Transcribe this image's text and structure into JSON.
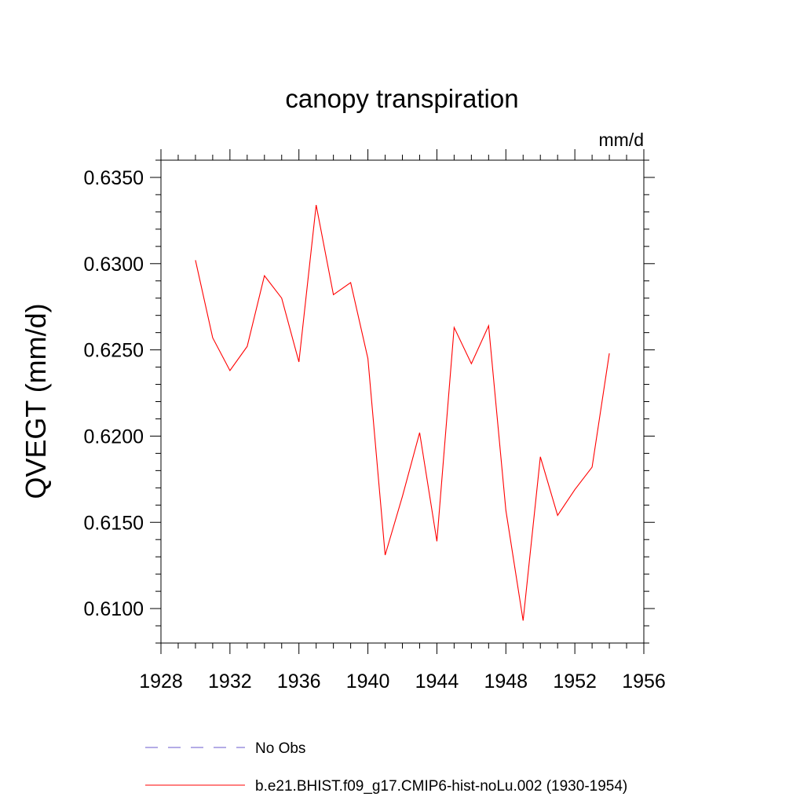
{
  "chart_data": {
    "type": "line",
    "title": "canopy transpiration",
    "units": "mm/d",
    "ylabel": "QVEGT  (mm/d)",
    "xlabel": "",
    "xlim": [
      1928,
      1956
    ],
    "ylim": [
      0.608,
      0.636
    ],
    "x_ticks": [
      "1928",
      "1932",
      "1936",
      "1940",
      "1944",
      "1948",
      "1952",
      "1956"
    ],
    "y_ticks": [
      "0.6100",
      "0.6150",
      "0.6200",
      "0.6250",
      "0.6300",
      "0.6350"
    ],
    "grid": false,
    "legend_placement": "bottom",
    "x": [
      1930,
      1931,
      1932,
      1933,
      1934,
      1935,
      1936,
      1937,
      1938,
      1939,
      1940,
      1941,
      1942,
      1943,
      1944,
      1945,
      1946,
      1947,
      1948,
      1949,
      1950,
      1951,
      1952,
      1953,
      1954
    ],
    "series": [
      {
        "name": "b.e21.BHIST.f09_g17.CMIP6-hist-noLu.002 (1930-1954)",
        "color": "#ff0000",
        "style": "solid",
        "values": [
          0.6302,
          0.6257,
          0.6238,
          0.6252,
          0.6293,
          0.628,
          0.6243,
          0.6334,
          0.6282,
          0.6289,
          0.6245,
          0.6131,
          0.6165,
          0.6202,
          0.6139,
          0.6263,
          0.6242,
          0.6264,
          0.6157,
          0.6093,
          0.6188,
          0.6154,
          0.6169,
          0.6182,
          0.6248
        ]
      }
    ],
    "legend": [
      {
        "label": "No Obs",
        "color": "#6a5acd",
        "style": "dashed"
      },
      {
        "label": "b.e21.BHIST.f09_g17.CMIP6-hist-noLu.002 (1930-1954)",
        "color": "#ff0000",
        "style": "solid"
      }
    ]
  }
}
